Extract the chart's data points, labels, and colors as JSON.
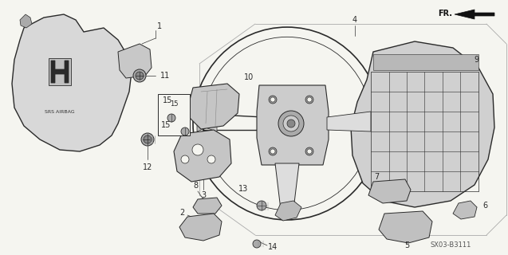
{
  "background_color": "#f5f5f0",
  "line_color": "#2a2a2a",
  "fig_width": 6.37,
  "fig_height": 3.2,
  "dpi": 100,
  "diagram_code": "SX03-B3111",
  "fr_label": "FR.",
  "border_color": "#888888",
  "light_gray": "#d0d0d0",
  "mid_gray": "#b0b0b0"
}
